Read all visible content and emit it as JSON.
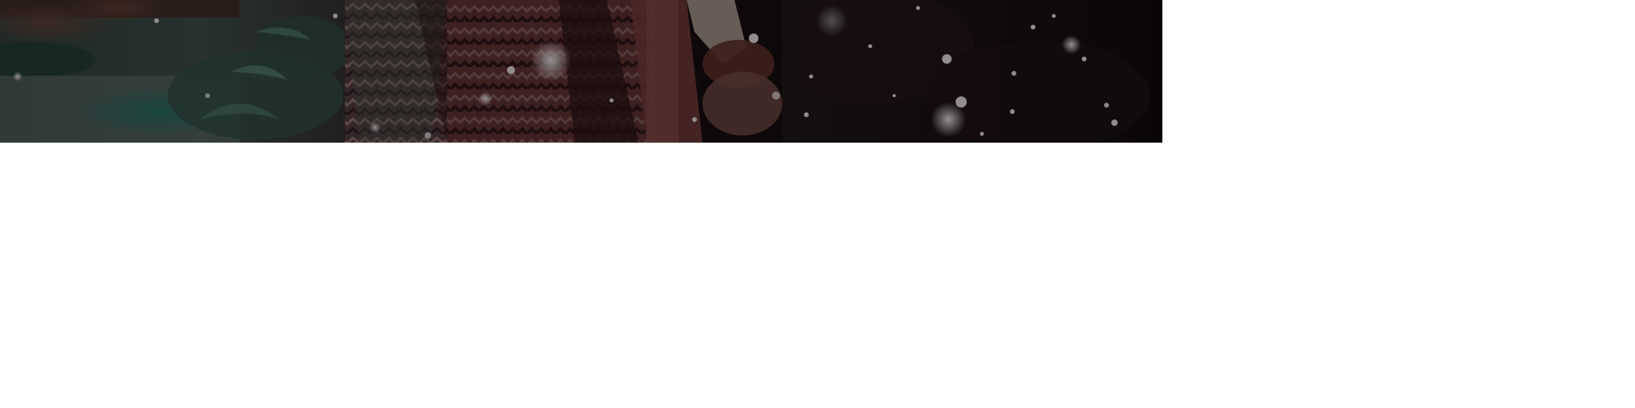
{
  "hero": {
    "image": "winter-scarf-snow-photo",
    "palette": {
      "foliage": "#2e4a42",
      "scarf_red": "#6a3a34",
      "scarf_pink": "#8a5a5e",
      "dark_coat": "#140c0e",
      "snow": "#d8d4d2"
    }
  }
}
